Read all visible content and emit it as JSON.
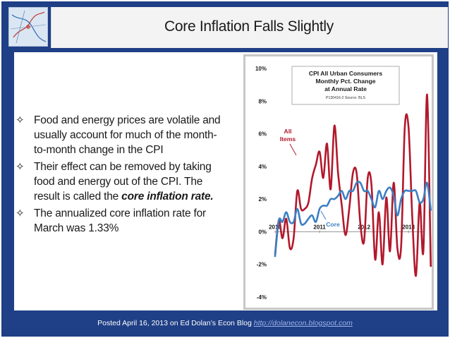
{
  "slide": {
    "title": "Core Inflation Falls Slightly",
    "bullets": [
      {
        "text": "Food and energy prices are volatile and usually account for much of the month-to-month change in the CPI"
      },
      {
        "text_before": "Their effect can be removed by taking food and energy out of the CPI. The result is called the ",
        "emphasis": "core inflation rate."
      },
      {
        "text": "The annualized core inflation rate for March was 1.33%"
      }
    ],
    "footer": {
      "text": "Posted April 16, 2013 on Ed Dolan’s Econ Blog ",
      "link": "http://dolanecon.blogspot.com"
    }
  },
  "chart_data": {
    "type": "line",
    "title": "CPI All Urban Consumers Monthly Pct. Change at Annual Rate",
    "source": "P130416-2 Source: BLS",
    "x_tick_labels": [
      "2010",
      "2011",
      "2012",
      "2013"
    ],
    "y_tick_labels": [
      "10%",
      "8%",
      "6%",
      "4%",
      "2%",
      "0%",
      "-2%",
      "-4%"
    ],
    "ylim": [
      -4,
      10
    ],
    "y_ticks": [
      10,
      8,
      6,
      4,
      2,
      0,
      -2,
      -4
    ],
    "x_start_year": 2010,
    "x_end_year": 2013.33,
    "grid": false,
    "series": [
      {
        "name": "All Items",
        "color": "#b2182b",
        "values": [
          -1.4,
          0.7,
          -0.4,
          0.8,
          -1.0,
          -0.4,
          2.5,
          1.4,
          1.4,
          1.8,
          3.3,
          4.1,
          4.9,
          3.3,
          5.4,
          2.6,
          6.5,
          3.6,
          1.6,
          -0.2,
          1.4,
          3.6,
          3.6,
          0.5,
          -0.6,
          3.3,
          2.9,
          -1.7,
          1.2,
          -2.0,
          2.1,
          -1.2,
          3.0,
          -1.0,
          -0.9,
          6.4,
          6.4,
          1.0,
          -2.7,
          1.8,
          -1.2,
          8.4,
          -2.1
        ]
      },
      {
        "name": "Core",
        "color": "#3b7fc4",
        "values": [
          -1.5,
          0.7,
          0.6,
          1.2,
          0.6,
          0.6,
          1.4,
          0.5,
          0.5,
          0.8,
          1.0,
          0.6,
          1.4,
          1.6,
          1.6,
          2.0,
          2.0,
          2.2,
          2.5,
          2.0,
          2.5,
          2.5,
          3.0,
          3.0,
          2.5,
          2.5,
          2.0,
          1.5,
          2.5,
          2.0,
          2.5,
          2.7,
          2.2,
          1.0,
          2.0,
          2.5,
          2.5,
          2.5,
          2.5,
          1.8,
          2.0,
          3.0,
          1.33
        ]
      }
    ]
  }
}
